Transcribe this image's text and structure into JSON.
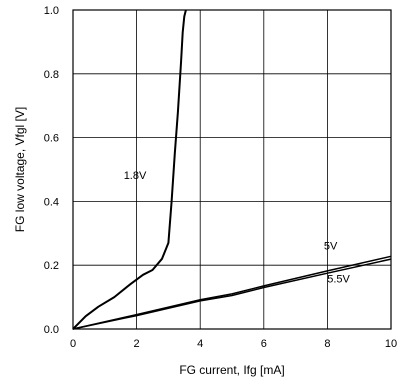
{
  "chart_data": {
    "type": "line",
    "xlabel": "FG current, Ifg [mA]",
    "ylabel": "FG low voltage, Vfgl [V]",
    "xlim": [
      0,
      10
    ],
    "ylim": [
      0,
      1.0
    ],
    "xticks": [
      "0",
      "2",
      "4",
      "6",
      "8",
      "10"
    ],
    "yticks": [
      "0.0",
      "0.2",
      "0.4",
      "0.6",
      "0.8",
      "1.0"
    ],
    "grid": true,
    "series": [
      {
        "name": "1.8V",
        "x": [
          0,
          0.4,
          0.8,
          1.3,
          1.8,
          2.2,
          2.5,
          2.8,
          3.0,
          3.1,
          3.2,
          3.3,
          3.35,
          3.4,
          3.45,
          3.5,
          3.55
        ],
        "y": [
          0,
          0.04,
          0.07,
          0.1,
          0.14,
          0.17,
          0.185,
          0.22,
          0.27,
          0.4,
          0.55,
          0.68,
          0.76,
          0.84,
          0.93,
          0.98,
          1.0
        ]
      },
      {
        "name": "5V",
        "x": [
          0,
          2,
          4,
          5,
          6,
          8,
          10
        ],
        "y": [
          0,
          0.045,
          0.092,
          0.11,
          0.135,
          0.182,
          0.228
        ]
      },
      {
        "name": "5.5V",
        "x": [
          0,
          2,
          4,
          5,
          6,
          8,
          10
        ],
        "y": [
          0,
          0.042,
          0.088,
          0.105,
          0.13,
          0.175,
          0.219
        ]
      }
    ]
  }
}
